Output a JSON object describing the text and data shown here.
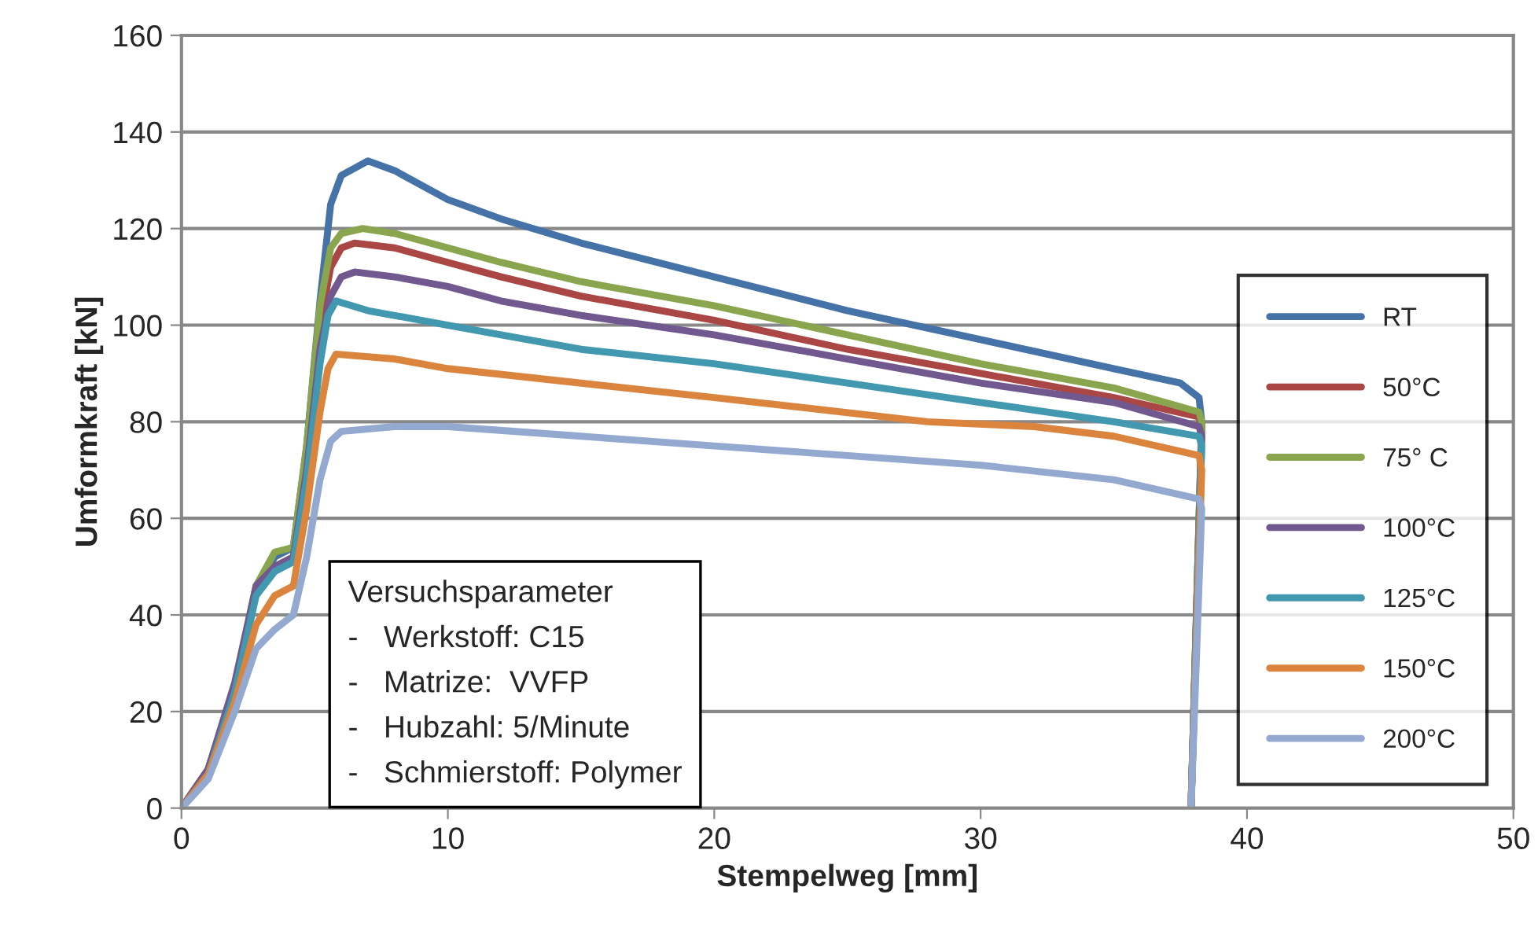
{
  "chart_data": {
    "type": "line",
    "xlabel": "Stempelweg [mm]",
    "ylabel": "Umformkraft [kN]",
    "xlim": [
      0,
      50
    ],
    "ylim": [
      0,
      160
    ],
    "xticks": [
      0,
      10,
      20,
      30,
      40,
      50
    ],
    "yticks": [
      0,
      20,
      40,
      60,
      80,
      100,
      120,
      140,
      160
    ],
    "grid": "y",
    "legend": "right",
    "marker": "none",
    "line_style": "solid",
    "annotations": [
      "Versuchsparameter\n-   Werkstoff: C15\n-   Matrize:  VVFP\n-   Hubzahl: 5/Minute\n-   Schmierstoff: Polymer"
    ],
    "series": [
      {
        "name": "RT",
        "color": "#4572a7",
        "x": [
          0,
          1,
          2,
          2.8,
          3.5,
          4.2,
          4.7,
          5.2,
          5.6,
          6,
          7,
          8,
          10,
          12,
          15,
          20,
          25,
          30,
          35,
          37.5,
          38.2,
          38.3,
          37.9
        ],
        "values": [
          0,
          8,
          25,
          45,
          52,
          54,
          75,
          105,
          125,
          131,
          134,
          132,
          126,
          122,
          117,
          110,
          103,
          97,
          91,
          88,
          85,
          80,
          0
        ]
      },
      {
        "name": "50°C",
        "color": "#aa4643",
        "x": [
          0,
          1,
          2,
          2.8,
          3.5,
          4.2,
          4.7,
          5.2,
          5.6,
          6,
          6.5,
          8,
          10,
          12,
          15,
          20,
          25,
          30,
          35,
          38.2,
          38.3,
          37.9
        ],
        "values": [
          0,
          8,
          25,
          45,
          50,
          52,
          72,
          100,
          112,
          116,
          117,
          116,
          113,
          110,
          106,
          101,
          95,
          90,
          85,
          81,
          79,
          0
        ]
      },
      {
        "name": "75° C",
        "color": "#89a54e",
        "x": [
          0,
          1,
          2,
          2.8,
          3.5,
          4.2,
          4.7,
          5.2,
          5.6,
          6,
          6.8,
          8,
          10,
          12,
          15,
          20,
          25,
          30,
          35,
          38.2,
          38.3,
          37.9
        ],
        "values": [
          0,
          8,
          25,
          46,
          53,
          54,
          75,
          104,
          116,
          119,
          120,
          119,
          116,
          113,
          109,
          104,
          98,
          92,
          87,
          82,
          80,
          0
        ]
      },
      {
        "name": "100°C",
        "color": "#71588f",
        "x": [
          0,
          1,
          2,
          2.8,
          3.5,
          4.2,
          4.7,
          5.2,
          5.6,
          6,
          6.5,
          8,
          10,
          12,
          15,
          20,
          25,
          30,
          35,
          38.2,
          38.3,
          37.9
        ],
        "values": [
          0,
          8,
          26,
          46,
          50,
          52,
          70,
          95,
          106,
          110,
          111,
          110,
          108,
          105,
          102,
          98,
          93,
          88,
          84,
          79,
          77,
          0
        ]
      },
      {
        "name": "125°C",
        "color": "#4198af",
        "x": [
          0,
          1,
          2,
          2.8,
          3.5,
          4.2,
          4.7,
          5.2,
          5.5,
          5.8,
          7,
          10,
          12,
          15,
          20,
          25,
          30,
          35,
          38.2,
          38.3,
          37.9
        ],
        "values": [
          0,
          7,
          24,
          44,
          49,
          51,
          68,
          92,
          102,
          105,
          103,
          100,
          98,
          95,
          92,
          88,
          84,
          80,
          77,
          75,
          0
        ]
      },
      {
        "name": "150°C",
        "color": "#db843d",
        "x": [
          0,
          1,
          2,
          2.8,
          3.5,
          4.2,
          4.7,
          5.2,
          5.5,
          5.8,
          8,
          10,
          15,
          20,
          28,
          32,
          35,
          38.2,
          38.3,
          37.9
        ],
        "values": [
          0,
          7,
          22,
          38,
          44,
          46,
          62,
          82,
          91,
          94,
          93,
          91,
          88,
          85,
          80,
          79,
          77,
          73,
          70,
          0
        ]
      },
      {
        "name": "200°C",
        "color": "#93a9cf",
        "x": [
          0,
          1,
          2,
          2.8,
          3.5,
          4.2,
          4.7,
          5.2,
          5.6,
          6,
          8,
          10,
          15,
          20,
          25,
          30,
          35,
          38.2,
          38.3,
          37.9
        ],
        "values": [
          0,
          6,
          20,
          33,
          37,
          40,
          52,
          68,
          76,
          78,
          79,
          79,
          77,
          75,
          73,
          71,
          68,
          64,
          62,
          0
        ]
      }
    ]
  }
}
